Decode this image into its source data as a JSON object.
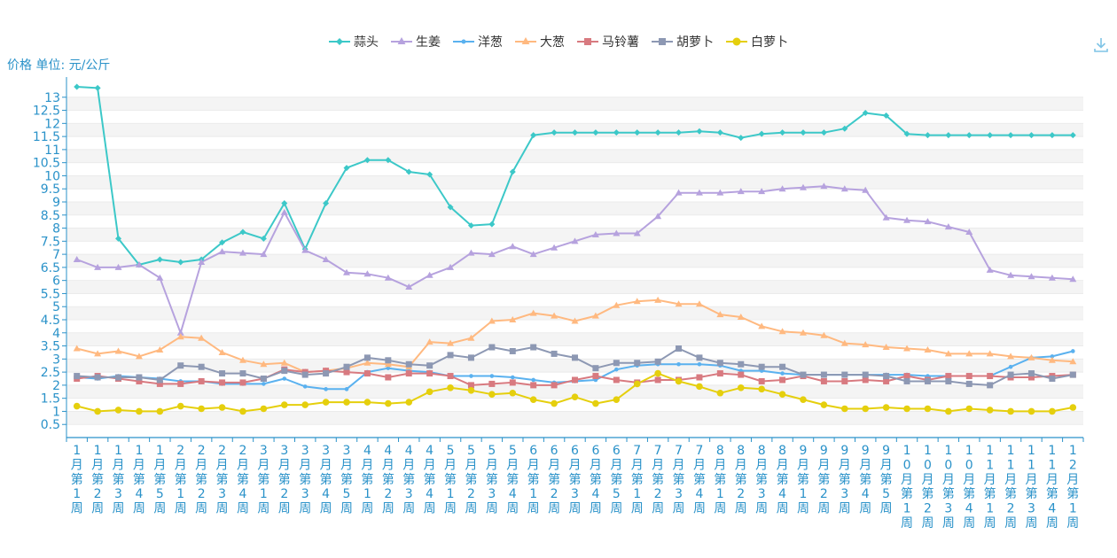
{
  "chart_data": {
    "type": "line",
    "ylabel": "价格 单位: 元/公斤",
    "ylim": [
      0,
      13.5
    ],
    "yticks": [
      "0.5",
      "1",
      "1.5",
      "2",
      "2.5",
      "3",
      "3.5",
      "4",
      "4.5",
      "5",
      "5.5",
      "6",
      "6.5",
      "7",
      "7.5",
      "8",
      "8.5",
      "9",
      "9.5",
      "10",
      "10.5",
      "11",
      "11.5",
      "12",
      "12.5",
      "13"
    ],
    "categories": [
      "1月第1周",
      "1月第2周",
      "1月第3周",
      "1月第4周",
      "1月第5周",
      "2月第1周",
      "2月第2周",
      "2月第3周",
      "2月第4周",
      "3月第1周",
      "3月第2周",
      "3月第3周",
      "3月第4周",
      "3月第5周",
      "4月第1周",
      "4月第2周",
      "4月第3周",
      "4月第4周",
      "5月第1周",
      "5月第2周",
      "5月第3周",
      "5月第4周",
      "6月第1周",
      "6月第2周",
      "6月第3周",
      "6月第4周",
      "6月第5周",
      "7月第1周",
      "7月第2周",
      "7月第3周",
      "7月第4周",
      "8月第1周",
      "8月第2周",
      "8月第3周",
      "8月第4周",
      "9月第1周",
      "9月第2周",
      "9月第3周",
      "9月第4周",
      "9月第5周",
      "10月第1周",
      "10月第2周",
      "10月第3周",
      "10月第4周",
      "11月第1周",
      "11月第2周",
      "11月第3周",
      "11月第4周",
      "12月第1周"
    ],
    "series": [
      {
        "name": "蒜头",
        "color": "#3cc8c8",
        "marker": "diamond",
        "values": [
          13.4,
          13.35,
          7.6,
          6.6,
          6.8,
          6.7,
          6.8,
          7.45,
          7.85,
          7.6,
          8.95,
          7.2,
          8.95,
          10.3,
          10.6,
          10.6,
          10.15,
          10.05,
          8.8,
          8.1,
          8.15,
          10.15,
          11.55,
          11.65,
          11.65,
          11.65,
          11.65,
          11.65,
          11.65,
          11.65,
          11.7,
          11.65,
          11.45,
          11.6,
          11.65,
          11.65,
          11.65,
          11.8,
          12.4,
          12.3,
          11.6,
          11.55,
          11.55,
          11.55,
          11.55,
          11.55,
          11.55,
          11.55,
          11.55
        ]
      },
      {
        "name": "生姜",
        "color": "#b6a2de",
        "marker": "triangle",
        "values": [
          6.8,
          6.5,
          6.5,
          6.6,
          6.1,
          4.0,
          6.7,
          7.1,
          7.05,
          7.0,
          8.6,
          7.15,
          6.8,
          6.3,
          6.25,
          6.1,
          5.75,
          6.2,
          6.5,
          7.05,
          7.0,
          7.3,
          7.0,
          7.25,
          7.5,
          7.75,
          7.8,
          7.8,
          8.45,
          9.35,
          9.35,
          9.35,
          9.4,
          9.4,
          9.5,
          9.55,
          9.6,
          9.5,
          9.45,
          8.4,
          8.3,
          8.25,
          8.05,
          7.85,
          6.4,
          6.2,
          6.15,
          6.1,
          6.05
        ]
      },
      {
        "name": "洋葱",
        "color": "#5ab1ef",
        "marker": "circle",
        "values": [
          2.3,
          2.25,
          2.35,
          2.3,
          2.25,
          2.15,
          2.15,
          2.05,
          2.05,
          2.05,
          2.25,
          1.95,
          1.85,
          1.85,
          2.5,
          2.65,
          2.55,
          2.5,
          2.35,
          2.35,
          2.35,
          2.3,
          2.2,
          2.1,
          2.15,
          2.2,
          2.6,
          2.75,
          2.8,
          2.8,
          2.8,
          2.75,
          2.55,
          2.55,
          2.45,
          2.4,
          2.4,
          2.4,
          2.4,
          2.4,
          2.4,
          2.35,
          2.35,
          2.35,
          2.35,
          2.7,
          3.05,
          3.1,
          3.3
        ]
      },
      {
        "name": "大葱",
        "color": "#ffb980",
        "marker": "triangle",
        "values": [
          3.4,
          3.2,
          3.3,
          3.1,
          3.35,
          3.85,
          3.8,
          3.25,
          2.95,
          2.8,
          2.85,
          2.5,
          2.55,
          2.65,
          2.85,
          2.8,
          2.7,
          3.65,
          3.6,
          3.8,
          4.45,
          4.5,
          4.75,
          4.65,
          4.45,
          4.65,
          5.05,
          5.2,
          5.25,
          5.1,
          5.1,
          4.7,
          4.6,
          4.25,
          4.05,
          4.0,
          3.9,
          3.6,
          3.55,
          3.45,
          3.4,
          3.35,
          3.2,
          3.2,
          3.2,
          3.1,
          3.05,
          2.95,
          2.9
        ]
      },
      {
        "name": "马铃薯",
        "color": "#d87a80",
        "marker": "square",
        "values": [
          2.25,
          2.35,
          2.25,
          2.15,
          2.05,
          2.05,
          2.15,
          2.1,
          2.1,
          2.25,
          2.6,
          2.5,
          2.55,
          2.5,
          2.45,
          2.3,
          2.45,
          2.45,
          2.35,
          2.0,
          2.05,
          2.1,
          2.0,
          2.0,
          2.2,
          2.35,
          2.2,
          2.1,
          2.2,
          2.2,
          2.3,
          2.45,
          2.4,
          2.15,
          2.2,
          2.35,
          2.15,
          2.15,
          2.2,
          2.15,
          2.35,
          2.2,
          2.35,
          2.35,
          2.35,
          2.3,
          2.3,
          2.35,
          2.4
        ]
      },
      {
        "name": "胡萝卜",
        "color": "#8d98b3",
        "marker": "square",
        "values": [
          2.35,
          2.3,
          2.3,
          2.3,
          2.2,
          2.75,
          2.7,
          2.45,
          2.45,
          2.25,
          2.55,
          2.4,
          2.45,
          2.7,
          3.05,
          2.95,
          2.8,
          2.75,
          3.15,
          3.05,
          3.45,
          3.3,
          3.45,
          3.2,
          3.05,
          2.65,
          2.85,
          2.85,
          2.9,
          3.4,
          3.05,
          2.85,
          2.8,
          2.7,
          2.7,
          2.4,
          2.4,
          2.4,
          2.4,
          2.35,
          2.15,
          2.15,
          2.15,
          2.05,
          2.0,
          2.4,
          2.45,
          2.25,
          2.4
        ]
      },
      {
        "name": "白萝卜",
        "color": "#e5cf0d",
        "marker": "circle",
        "values": [
          1.2,
          1.0,
          1.05,
          1.0,
          1.0,
          1.2,
          1.1,
          1.15,
          1.0,
          1.1,
          1.25,
          1.25,
          1.35,
          1.35,
          1.35,
          1.3,
          1.35,
          1.75,
          1.9,
          1.8,
          1.65,
          1.7,
          1.45,
          1.3,
          1.55,
          1.3,
          1.45,
          2.05,
          2.45,
          2.15,
          1.95,
          1.7,
          1.9,
          1.85,
          1.65,
          1.45,
          1.25,
          1.1,
          1.1,
          1.15,
          1.1,
          1.1,
          1.0,
          1.1,
          1.05,
          1.0,
          1.0,
          1.0,
          1.15
        ]
      }
    ]
  }
}
